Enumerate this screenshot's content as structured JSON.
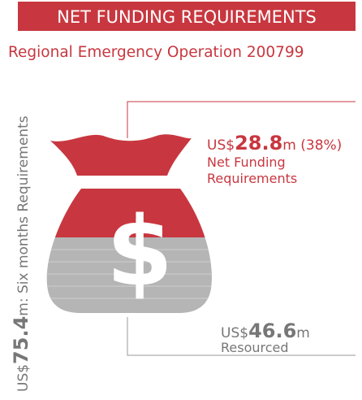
{
  "header": {
    "title": "NET FUNDING REQUIREMENTS",
    "subtitle": "Regional Emergency Operation 200799"
  },
  "total": {
    "prefix": "US$",
    "amount": "75.4",
    "suffix": "m: Six months Requirements"
  },
  "net_funding": {
    "prefix": "US$",
    "amount": "28.8",
    "suffix": "m (38%)",
    "label": [
      "Net Funding",
      "Requirements"
    ]
  },
  "resourced": {
    "prefix": "US$",
    "amount": "46.6",
    "suffix": "m",
    "label": "Resourced"
  }
}
